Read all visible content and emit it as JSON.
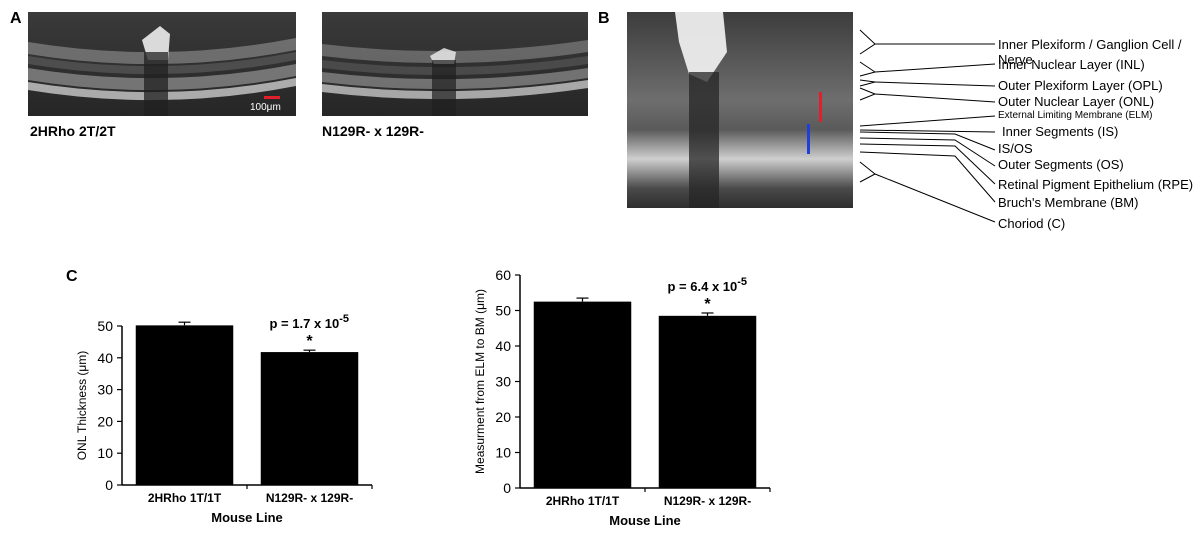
{
  "panels": {
    "a": "A",
    "b": "B",
    "c": "C"
  },
  "panel_a": {
    "left_caption": "2HRho 2T/2T",
    "right_caption": "N129R- x 129R-",
    "scale_bar_label": "100μm",
    "scale_bar_color": "#e0202a"
  },
  "panel_b": {
    "layers": [
      "Inner Plexiform / Ganglion Cell / Nerve",
      "Inner Nuclear Layer (INL)",
      "Outer Plexiform Layer (OPL)",
      "Outer Nuclear Layer (ONL)",
      "External Limiting Membrane (ELM)",
      "Inner Segments (IS)",
      "IS/OS",
      "Outer Segments (OS)",
      "Retinal Pigment Epithelium (RPE)",
      "Bruch's Membrane (BM)",
      "Choriod (C)"
    ],
    "marker_colors": {
      "onl": "#e0202a",
      "elm_bm": "#1f3fd8"
    }
  },
  "chart_data": [
    {
      "type": "bar",
      "categories": [
        "2HRho 1T/1T",
        "N129R- x 129R-"
      ],
      "values": [
        50.2,
        41.8
      ],
      "errors": [
        1.0,
        0.6
      ],
      "xlabel": "Mouse Line",
      "ylabel": "ONL Thickness (μm)",
      "ylim": [
        0,
        50
      ],
      "yticks": [
        0,
        10,
        20,
        30,
        40,
        50
      ],
      "annotation": {
        "text": "p = 1.7 x 10",
        "exponent": "-5",
        "star": "*"
      },
      "bar_color": "#000000"
    },
    {
      "type": "bar",
      "categories": [
        "2HRho 1T/1T",
        "N129R- x 129R-"
      ],
      "values": [
        52.5,
        48.5
      ],
      "errors": [
        1.0,
        0.8
      ],
      "xlabel": "Mouse Line",
      "ylabel": "Measurment from ELM to BM (μm)",
      "ylim": [
        0,
        60
      ],
      "yticks": [
        0,
        10,
        20,
        30,
        40,
        50,
        60
      ],
      "annotation": {
        "text": "p = 6.4 x 10",
        "exponent": "-5",
        "star": "*"
      },
      "bar_color": "#000000"
    }
  ]
}
